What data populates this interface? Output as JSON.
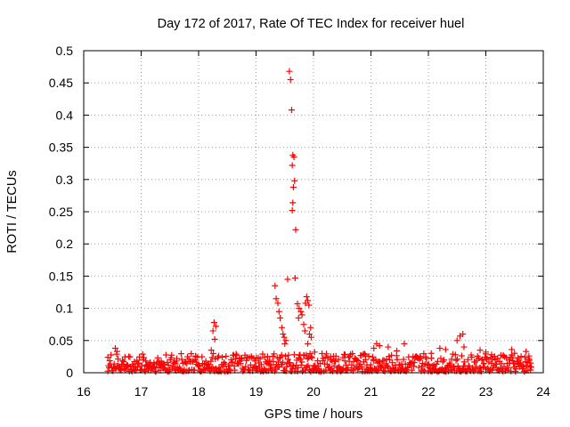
{
  "chart_data": {
    "type": "scatter",
    "title": "Day 172 of 2017, Rate Of TEC Index for receiver huel",
    "xlabel": "GPS time / hours",
    "ylabel": "ROTI / TECUs",
    "xlim": [
      16,
      24
    ],
    "ylim": [
      0,
      0.5
    ],
    "xticks": [
      "16",
      "17",
      "18",
      "19",
      "20",
      "21",
      "22",
      "23",
      "24"
    ],
    "yticks": [
      "0",
      "0.05",
      "0.1",
      "0.15",
      "0.2",
      "0.25",
      "0.3",
      "0.35",
      "0.4",
      "0.45",
      "0.5"
    ],
    "grid": true,
    "marker": "+",
    "color": "#ff0000",
    "series": [
      {
        "name": "ROTI",
        "points": [
          [
            16.42,
            0.024
          ],
          [
            16.55,
            0.038
          ],
          [
            16.58,
            0.033
          ],
          [
            17.35,
            0.018
          ],
          [
            17.62,
            0.022
          ],
          [
            17.95,
            0.025
          ],
          [
            18.25,
            0.065
          ],
          [
            18.27,
            0.078
          ],
          [
            18.3,
            0.072
          ],
          [
            18.28,
            0.052
          ],
          [
            18.22,
            0.035
          ],
          [
            18.35,
            0.026
          ],
          [
            19.2,
            0.025
          ],
          [
            19.33,
            0.135
          ],
          [
            19.35,
            0.115
          ],
          [
            19.38,
            0.108
          ],
          [
            19.4,
            0.095
          ],
          [
            19.42,
            0.085
          ],
          [
            19.45,
            0.07
          ],
          [
            19.47,
            0.06
          ],
          [
            19.5,
            0.045
          ],
          [
            19.52,
            0.05
          ],
          [
            19.49,
            0.055
          ],
          [
            19.55,
            0.145
          ],
          [
            19.58,
            0.468
          ],
          [
            19.6,
            0.455
          ],
          [
            19.62,
            0.408
          ],
          [
            19.64,
            0.338
          ],
          [
            19.66,
            0.335
          ],
          [
            19.63,
            0.322
          ],
          [
            19.67,
            0.298
          ],
          [
            19.65,
            0.288
          ],
          [
            19.64,
            0.264
          ],
          [
            19.63,
            0.252
          ],
          [
            19.69,
            0.222
          ],
          [
            19.68,
            0.147
          ],
          [
            19.72,
            0.107
          ],
          [
            19.75,
            0.1
          ],
          [
            19.78,
            0.095
          ],
          [
            19.8,
            0.09
          ],
          [
            19.74,
            0.085
          ],
          [
            19.83,
            0.075
          ],
          [
            19.85,
            0.065
          ],
          [
            19.88,
            0.118
          ],
          [
            19.9,
            0.112
          ],
          [
            19.86,
            0.108
          ],
          [
            19.92,
            0.105
          ],
          [
            19.95,
            0.07
          ],
          [
            19.93,
            0.06
          ],
          [
            19.96,
            0.055
          ],
          [
            19.9,
            0.045
          ],
          [
            20.02,
            0.032
          ],
          [
            20.3,
            0.025
          ],
          [
            20.55,
            0.028
          ],
          [
            20.9,
            0.028
          ],
          [
            21.05,
            0.038
          ],
          [
            21.1,
            0.045
          ],
          [
            21.15,
            0.042
          ],
          [
            21.3,
            0.04
          ],
          [
            21.45,
            0.034
          ],
          [
            21.58,
            0.045
          ],
          [
            22.05,
            0.03
          ],
          [
            22.2,
            0.038
          ],
          [
            22.3,
            0.036
          ],
          [
            22.5,
            0.05
          ],
          [
            22.55,
            0.057
          ],
          [
            22.6,
            0.06
          ],
          [
            22.62,
            0.04
          ],
          [
            22.9,
            0.035
          ],
          [
            23.0,
            0.032
          ],
          [
            23.1,
            0.028
          ],
          [
            23.3,
            0.026
          ],
          [
            23.45,
            0.036
          ],
          [
            23.5,
            0.03
          ],
          [
            23.7,
            0.033
          ],
          [
            23.75,
            0.026
          ],
          [
            23.78,
            0.015
          ]
        ]
      }
    ],
    "baseline": {
      "x_start": 16.42,
      "x_end": 23.8,
      "typical_min": 0.002,
      "typical_max": 0.03
    }
  }
}
